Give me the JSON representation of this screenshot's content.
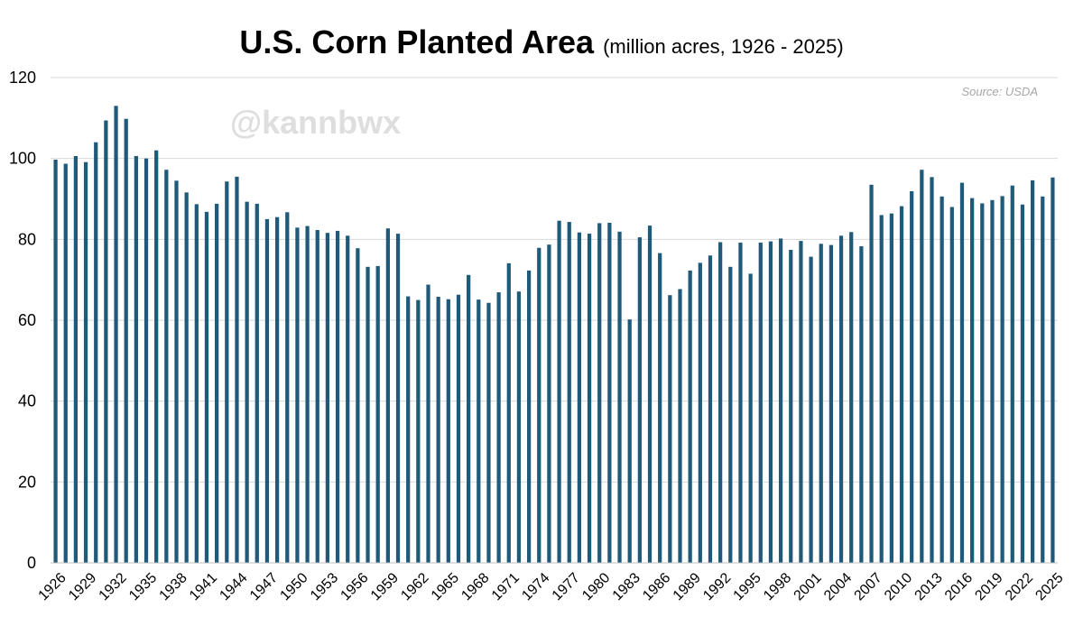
{
  "chart_data": {
    "type": "bar",
    "title": "U.S. Corn Planted Area",
    "subtitle": "(million acres, 1926 - 2025)",
    "source": "Source: USDA",
    "watermark": "@kannbwx",
    "xlabel": "",
    "ylabel": "",
    "ylim": [
      0,
      120
    ],
    "yticks": [
      0,
      20,
      40,
      60,
      80,
      100,
      120
    ],
    "grid": true,
    "bar_color": "#1f5a7a",
    "x_tick_labels": [
      "1926",
      "1929",
      "1932",
      "1935",
      "1938",
      "1941",
      "1944",
      "1947",
      "1950",
      "1953",
      "1956",
      "1959",
      "1962",
      "1965",
      "1968",
      "1971",
      "1974",
      "1977",
      "1980",
      "1983",
      "1986",
      "1989",
      "1992",
      "1995",
      "1998",
      "2001",
      "2004",
      "2007",
      "2010",
      "2013",
      "2016",
      "2019",
      "2022",
      "2025"
    ],
    "categories": [
      "1926",
      "1927",
      "1928",
      "1929",
      "1930",
      "1931",
      "1932",
      "1933",
      "1934",
      "1935",
      "1936",
      "1937",
      "1938",
      "1939",
      "1940",
      "1941",
      "1942",
      "1943",
      "1944",
      "1945",
      "1946",
      "1947",
      "1948",
      "1949",
      "1950",
      "1951",
      "1952",
      "1953",
      "1954",
      "1955",
      "1956",
      "1957",
      "1958",
      "1959",
      "1960",
      "1961",
      "1962",
      "1963",
      "1964",
      "1965",
      "1966",
      "1967",
      "1968",
      "1969",
      "1970",
      "1971",
      "1972",
      "1973",
      "1974",
      "1975",
      "1976",
      "1977",
      "1978",
      "1979",
      "1980",
      "1981",
      "1982",
      "1983",
      "1984",
      "1985",
      "1986",
      "1987",
      "1988",
      "1989",
      "1990",
      "1991",
      "1992",
      "1993",
      "1994",
      "1995",
      "1996",
      "1997",
      "1998",
      "1999",
      "2000",
      "2001",
      "2002",
      "2003",
      "2004",
      "2005",
      "2006",
      "2007",
      "2008",
      "2009",
      "2010",
      "2011",
      "2012",
      "2013",
      "2014",
      "2015",
      "2016",
      "2017",
      "2018",
      "2019",
      "2020",
      "2021",
      "2022",
      "2023",
      "2024",
      "2025"
    ],
    "values": [
      99.7,
      98.7,
      100.6,
      99.1,
      104.0,
      109.4,
      113.0,
      109.8,
      100.6,
      100.0,
      102.0,
      97.2,
      94.5,
      91.6,
      88.7,
      86.8,
      88.8,
      94.3,
      95.5,
      89.3,
      88.8,
      85.0,
      85.5,
      86.7,
      82.9,
      83.3,
      82.3,
      81.6,
      82.1,
      80.9,
      77.8,
      73.2,
      73.4,
      82.7,
      81.4,
      65.9,
      65.0,
      68.8,
      65.8,
      65.2,
      66.3,
      71.2,
      65.1,
      64.3,
      66.9,
      74.1,
      67.1,
      72.3,
      77.9,
      78.7,
      84.6,
      84.3,
      81.7,
      81.4,
      84.0,
      84.1,
      81.9,
      60.2,
      80.5,
      83.4,
      76.6,
      66.2,
      67.7,
      72.3,
      74.2,
      76.0,
      79.3,
      73.2,
      79.2,
      71.5,
      79.2,
      79.5,
      80.2,
      77.4,
      79.6,
      75.7,
      78.9,
      78.6,
      80.9,
      81.8,
      78.3,
      93.5,
      86.0,
      86.4,
      88.2,
      91.9,
      97.2,
      95.4,
      90.6,
      88.0,
      94.0,
      90.2,
      88.9,
      89.7,
      90.7,
      93.3,
      88.6,
      94.6,
      90.6,
      95.3
    ]
  }
}
